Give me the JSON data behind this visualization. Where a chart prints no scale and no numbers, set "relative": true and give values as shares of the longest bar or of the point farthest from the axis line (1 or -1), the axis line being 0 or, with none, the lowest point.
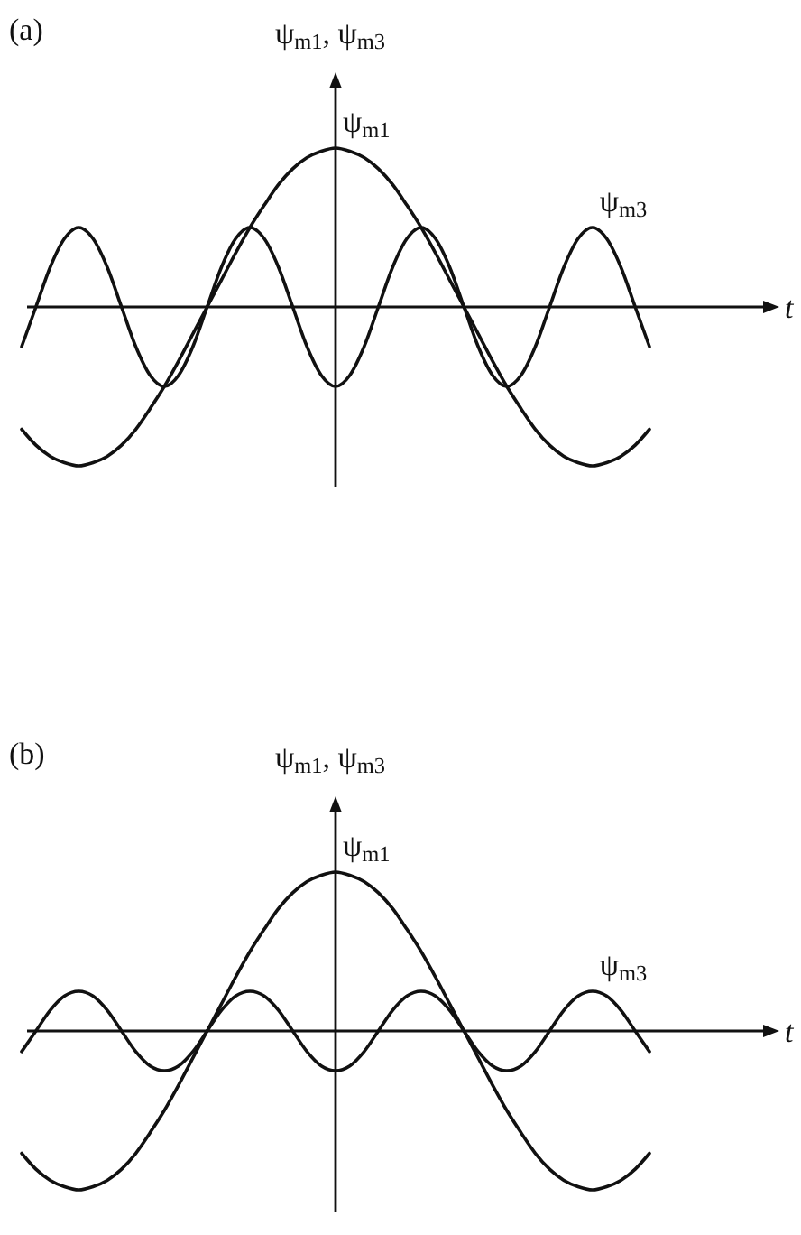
{
  "chart_data": [
    {
      "type": "line",
      "title": "(a)",
      "xlabel": "t",
      "ylabel": "ψ$_{m1}$, ψ$_{m3}$",
      "relative": true,
      "categories": [
        null,
        null,
        null,
        null,
        null,
        null,
        null,
        null,
        null,
        null,
        null,
        null,
        null,
        null,
        null,
        null,
        null,
        null,
        null,
        null,
        null,
        null,
        null,
        null,
        null,
        null,
        null,
        null,
        null,
        null,
        null,
        null,
        null,
        null,
        null,
        null,
        null,
        null,
        null,
        null,
        null,
        null,
        null,
        null,
        null
      ],
      "series": [
        {
          "name": "ψ$_{m1}$",
          "color": "#111111",
          "values": [
            -0.77,
            -0.87,
            -0.94,
            -0.98,
            -1,
            -0.98,
            -0.94,
            -0.87,
            -0.77,
            -0.64,
            -0.5,
            -0.34,
            -0.17,
            0,
            0.17,
            0.34,
            0.5,
            0.64,
            0.77,
            0.87,
            0.94,
            0.98,
            1,
            0.98,
            0.94,
            0.87,
            0.77,
            0.64,
            0.5,
            0.34,
            0.17,
            0,
            -0.17,
            -0.34,
            -0.5,
            -0.64,
            -0.77,
            -0.87,
            -0.94,
            -0.98,
            -1,
            -0.98,
            -0.94,
            -0.87,
            -0.77
          ]
        },
        {
          "name": "ψ$_{m3}$",
          "color": "#111111",
          "values": [
            -0.25,
            0,
            0.25,
            0.43,
            0.5,
            0.43,
            0.25,
            0,
            -0.25,
            -0.43,
            -0.5,
            -0.43,
            -0.25,
            0,
            0.25,
            0.43,
            0.5,
            0.43,
            0.25,
            0,
            -0.25,
            -0.43,
            -0.5,
            -0.43,
            -0.25,
            0,
            0.25,
            0.43,
            0.5,
            0.43,
            0.25,
            0,
            -0.25,
            -0.43,
            -0.5,
            -0.43,
            -0.25,
            0,
            0.25,
            0.43,
            0.5,
            0.43,
            0.25,
            0,
            -0.25
          ]
        }
      ]
    },
    {
      "type": "line",
      "title": "(b)",
      "xlabel": "t",
      "ylabel": "ψ$_{m1}$, ψ$_{m3}$",
      "relative": true,
      "categories": [
        null,
        null,
        null,
        null,
        null,
        null,
        null,
        null,
        null,
        null,
        null,
        null,
        null,
        null,
        null,
        null,
        null,
        null,
        null,
        null,
        null,
        null,
        null,
        null,
        null,
        null,
        null,
        null,
        null,
        null,
        null,
        null,
        null,
        null,
        null,
        null,
        null,
        null,
        null,
        null,
        null,
        null,
        null,
        null,
        null
      ],
      "series": [
        {
          "name": "ψ$_{m1}$",
          "color": "#111111",
          "values": [
            -0.77,
            -0.87,
            -0.94,
            -0.98,
            -1,
            -0.98,
            -0.94,
            -0.87,
            -0.77,
            -0.64,
            -0.5,
            -0.34,
            -0.17,
            0,
            0.17,
            0.34,
            0.5,
            0.64,
            0.77,
            0.87,
            0.94,
            0.98,
            1,
            0.98,
            0.94,
            0.87,
            0.77,
            0.64,
            0.5,
            0.34,
            0.17,
            0,
            -0.17,
            -0.34,
            -0.5,
            -0.64,
            -0.77,
            -0.87,
            -0.94,
            -0.98,
            -1,
            -0.98,
            -0.94,
            -0.87,
            -0.77
          ]
        },
        {
          "name": "ψ$_{m3}$",
          "color": "#111111",
          "values": [
            -0.13,
            0,
            0.13,
            0.22,
            0.25,
            0.22,
            0.13,
            0,
            -0.13,
            -0.22,
            -0.25,
            -0.22,
            -0.13,
            0,
            0.13,
            0.22,
            0.25,
            0.22,
            0.13,
            0,
            -0.13,
            -0.22,
            -0.25,
            -0.22,
            -0.13,
            0,
            0.13,
            0.22,
            0.25,
            0.22,
            0.13,
            0,
            -0.13,
            -0.22,
            -0.25,
            -0.22,
            -0.13,
            0,
            0.13,
            0.22,
            0.25,
            0.22,
            0.13,
            0,
            -0.13
          ]
        }
      ]
    }
  ]
}
